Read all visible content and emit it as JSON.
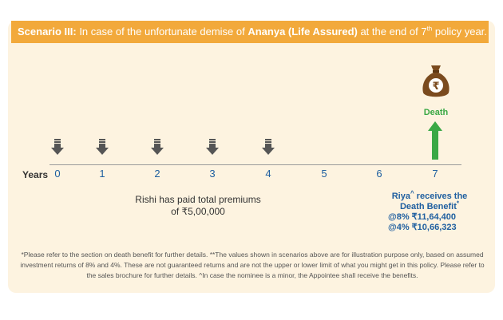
{
  "banner": {
    "scenario": "Scenario III:",
    "text_before": " In case of the unfortunate demise of ",
    "person": "Ananya (Life Assured)",
    "text_after": " at the end of 7",
    "ordinal": "th",
    "text_end": " policy year."
  },
  "timeline": {
    "label": "Years",
    "ticks": [
      "0",
      "1",
      "2",
      "3",
      "4",
      "5",
      "6",
      "7"
    ],
    "premium_years": [
      0,
      1,
      2,
      3,
      4
    ],
    "death_label": "Death",
    "death_year": 7
  },
  "premiums": {
    "line1": "Rishi has paid total premiums",
    "line2": "of ₹5,00,000"
  },
  "benefit": {
    "name": "Riya",
    "name_mark": "^",
    "line1_rest": " receives the",
    "line2": "Death Benefit",
    "line2_mark": "*",
    "rate1": "@8% ₹11,64,400",
    "rate2": "@4% ₹10,66,323"
  },
  "footnote": "*Please refer to the section on death benefit for further details. **The values shown in scenarios above are for illustration purpose only, based on assumed investment returns of 8% and 4%. These are not guaranteed returns and are not the upper or lower limit of what you might get in this policy. Please refer to the sales brochure for further details. ^In case the nominee is a minor, the Appointee shall receive the benefits.",
  "icons": {
    "premium": "down-arrow-icon",
    "death": "up-arrow-icon",
    "money_bag": "money-bag-rupee-icon"
  },
  "colors": {
    "banner": "#f2a93b",
    "card": "#fdf3e0",
    "accent_blue": "#1f5fa0",
    "death_green": "#3aa845",
    "bag_brown": "#7a4a1e"
  }
}
